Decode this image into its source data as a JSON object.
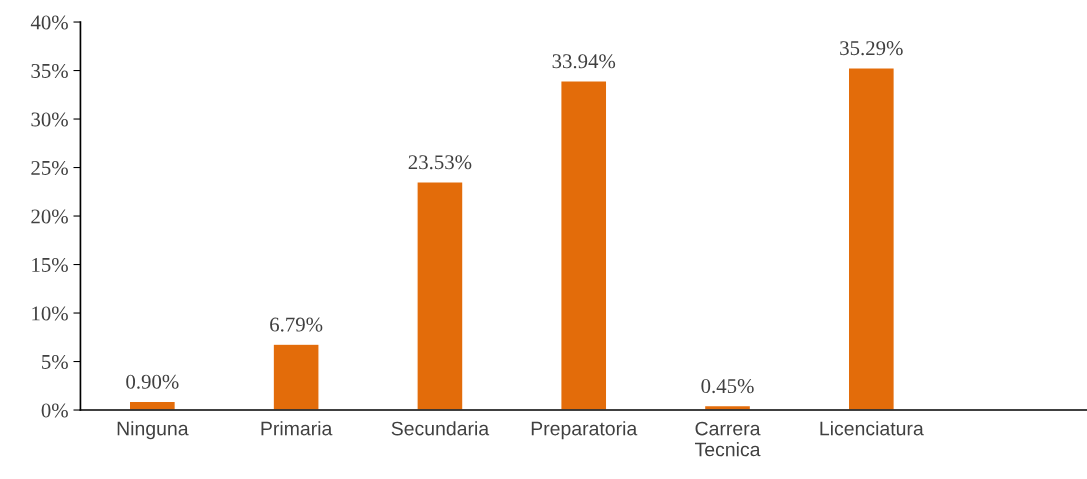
{
  "chart_data": {
    "type": "bar",
    "categories": [
      "Ninguna",
      "Primaria",
      "Secundaria",
      "Preparatoria",
      "Carrera\nTecnica",
      "Licenciatura",
      null
    ],
    "values": [
      0.9,
      6.79,
      23.53,
      33.94,
      0.45,
      35.29,
      null
    ],
    "value_labels": [
      "0.90%",
      "6.79%",
      "23.53%",
      "33.94%",
      "0.45%",
      "35.29%",
      null
    ],
    "color": "#e36c0a",
    "ylim": [
      0,
      40
    ],
    "yticks": [
      {
        "value": 0,
        "label": "0%"
      },
      {
        "value": 5,
        "label": "5%"
      },
      {
        "value": 10,
        "label": "10%"
      },
      {
        "value": 15,
        "label": "15%"
      },
      {
        "value": 20,
        "label": "20%"
      },
      {
        "value": 25,
        "label": "25%"
      },
      {
        "value": 30,
        "label": "30%"
      },
      {
        "value": 35,
        "label": "35%"
      },
      {
        "value": 40,
        "label": "40%"
      }
    ],
    "grid": false,
    "legend": false
  }
}
